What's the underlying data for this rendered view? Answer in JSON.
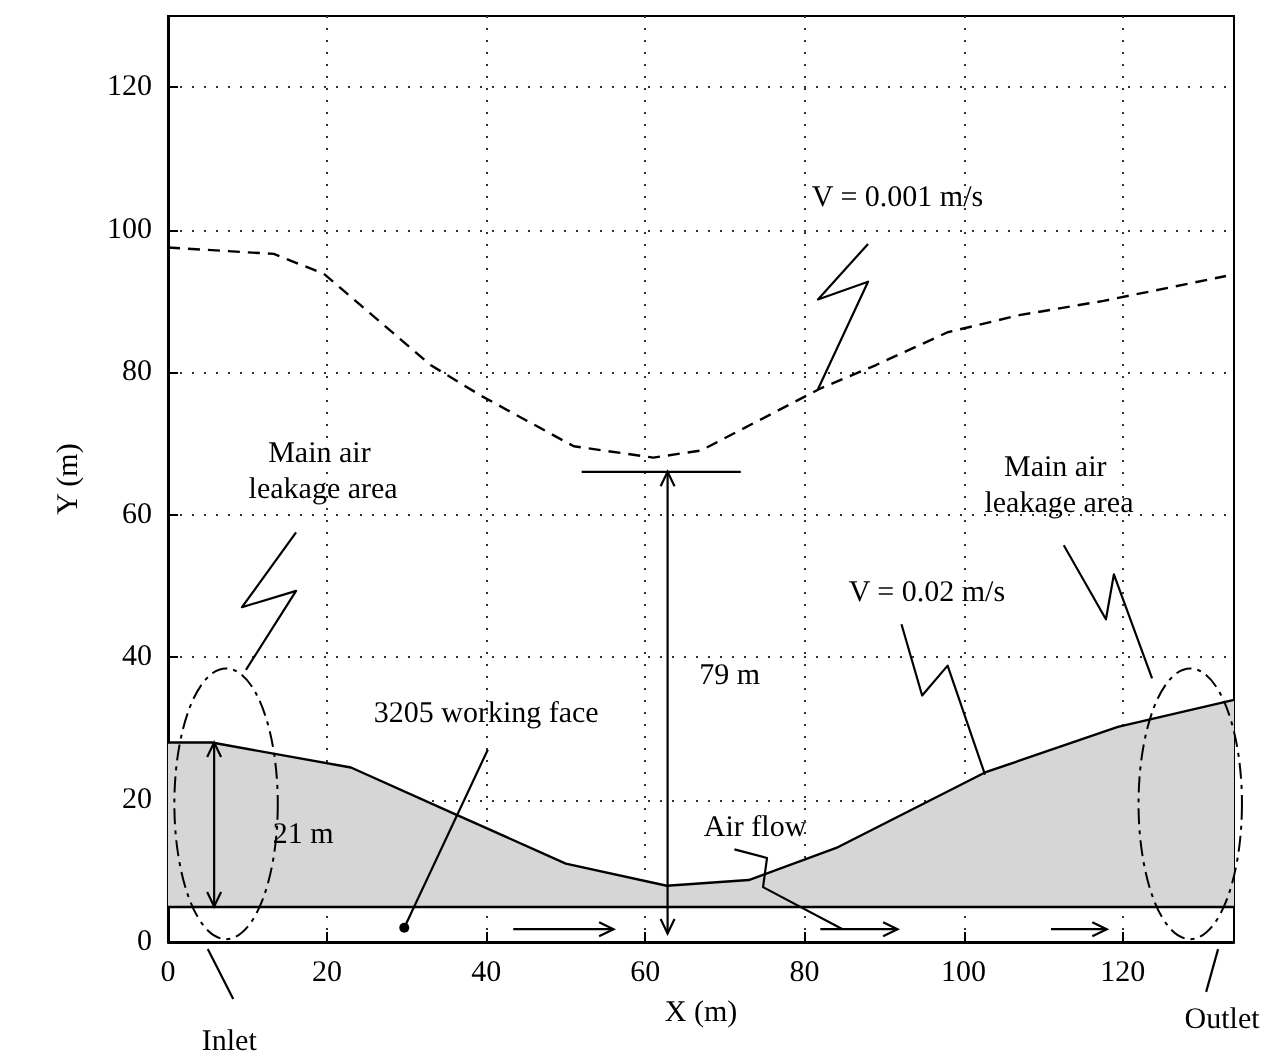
{
  "chart_data": {
    "type": "line",
    "xlabel": "X (m)",
    "ylabel": "Y (m)",
    "xlim": [
      0,
      134
    ],
    "ylim": [
      0,
      130
    ],
    "xticks": [
      0,
      20,
      40,
      60,
      80,
      100,
      120
    ],
    "yticks": [
      0,
      20,
      40,
      60,
      80,
      100,
      120
    ],
    "grid": true,
    "marker": "none",
    "series": [
      {
        "type": "line",
        "line_style": "dashed",
        "color": "#000000",
        "x": [
          0,
          13.3,
          19.6,
          33,
          39.5,
          51,
          61,
          67,
          82,
          89,
          98,
          107,
          117.6,
          133
        ],
        "values": [
          97.5,
          96.6,
          93.8,
          81,
          76.6,
          69.6,
          68,
          69,
          77.7,
          81,
          85.6,
          88,
          90,
          93.5
        ]
      },
      {
        "type": "area",
        "line_style": "solid",
        "color": "#000000",
        "x": [
          0,
          5.5,
          23,
          36,
          50,
          62.7,
          73,
          84,
          102.7,
          119.4,
          134
        ],
        "values": [
          28,
          28,
          24.5,
          18,
          11,
          7.9,
          8.7,
          13.2,
          23.8,
          30.2,
          34
        ]
      }
    ],
    "ref_lines": [
      {
        "axis": "y",
        "value": 5,
        "label": null
      }
    ],
    "annotations": [
      {
        "text": "V = 0.001 m/s",
        "x": 81.7,
        "y": 77.6
      },
      {
        "text": "V = 0.02 m/s",
        "x": 102.7,
        "y": 23.5
      },
      "Main air leakage area",
      "Main air leakage area",
      "3205 working face",
      "79 m",
      "21 m",
      "Air flow",
      "Inlet",
      "Outlet"
    ]
  }
}
